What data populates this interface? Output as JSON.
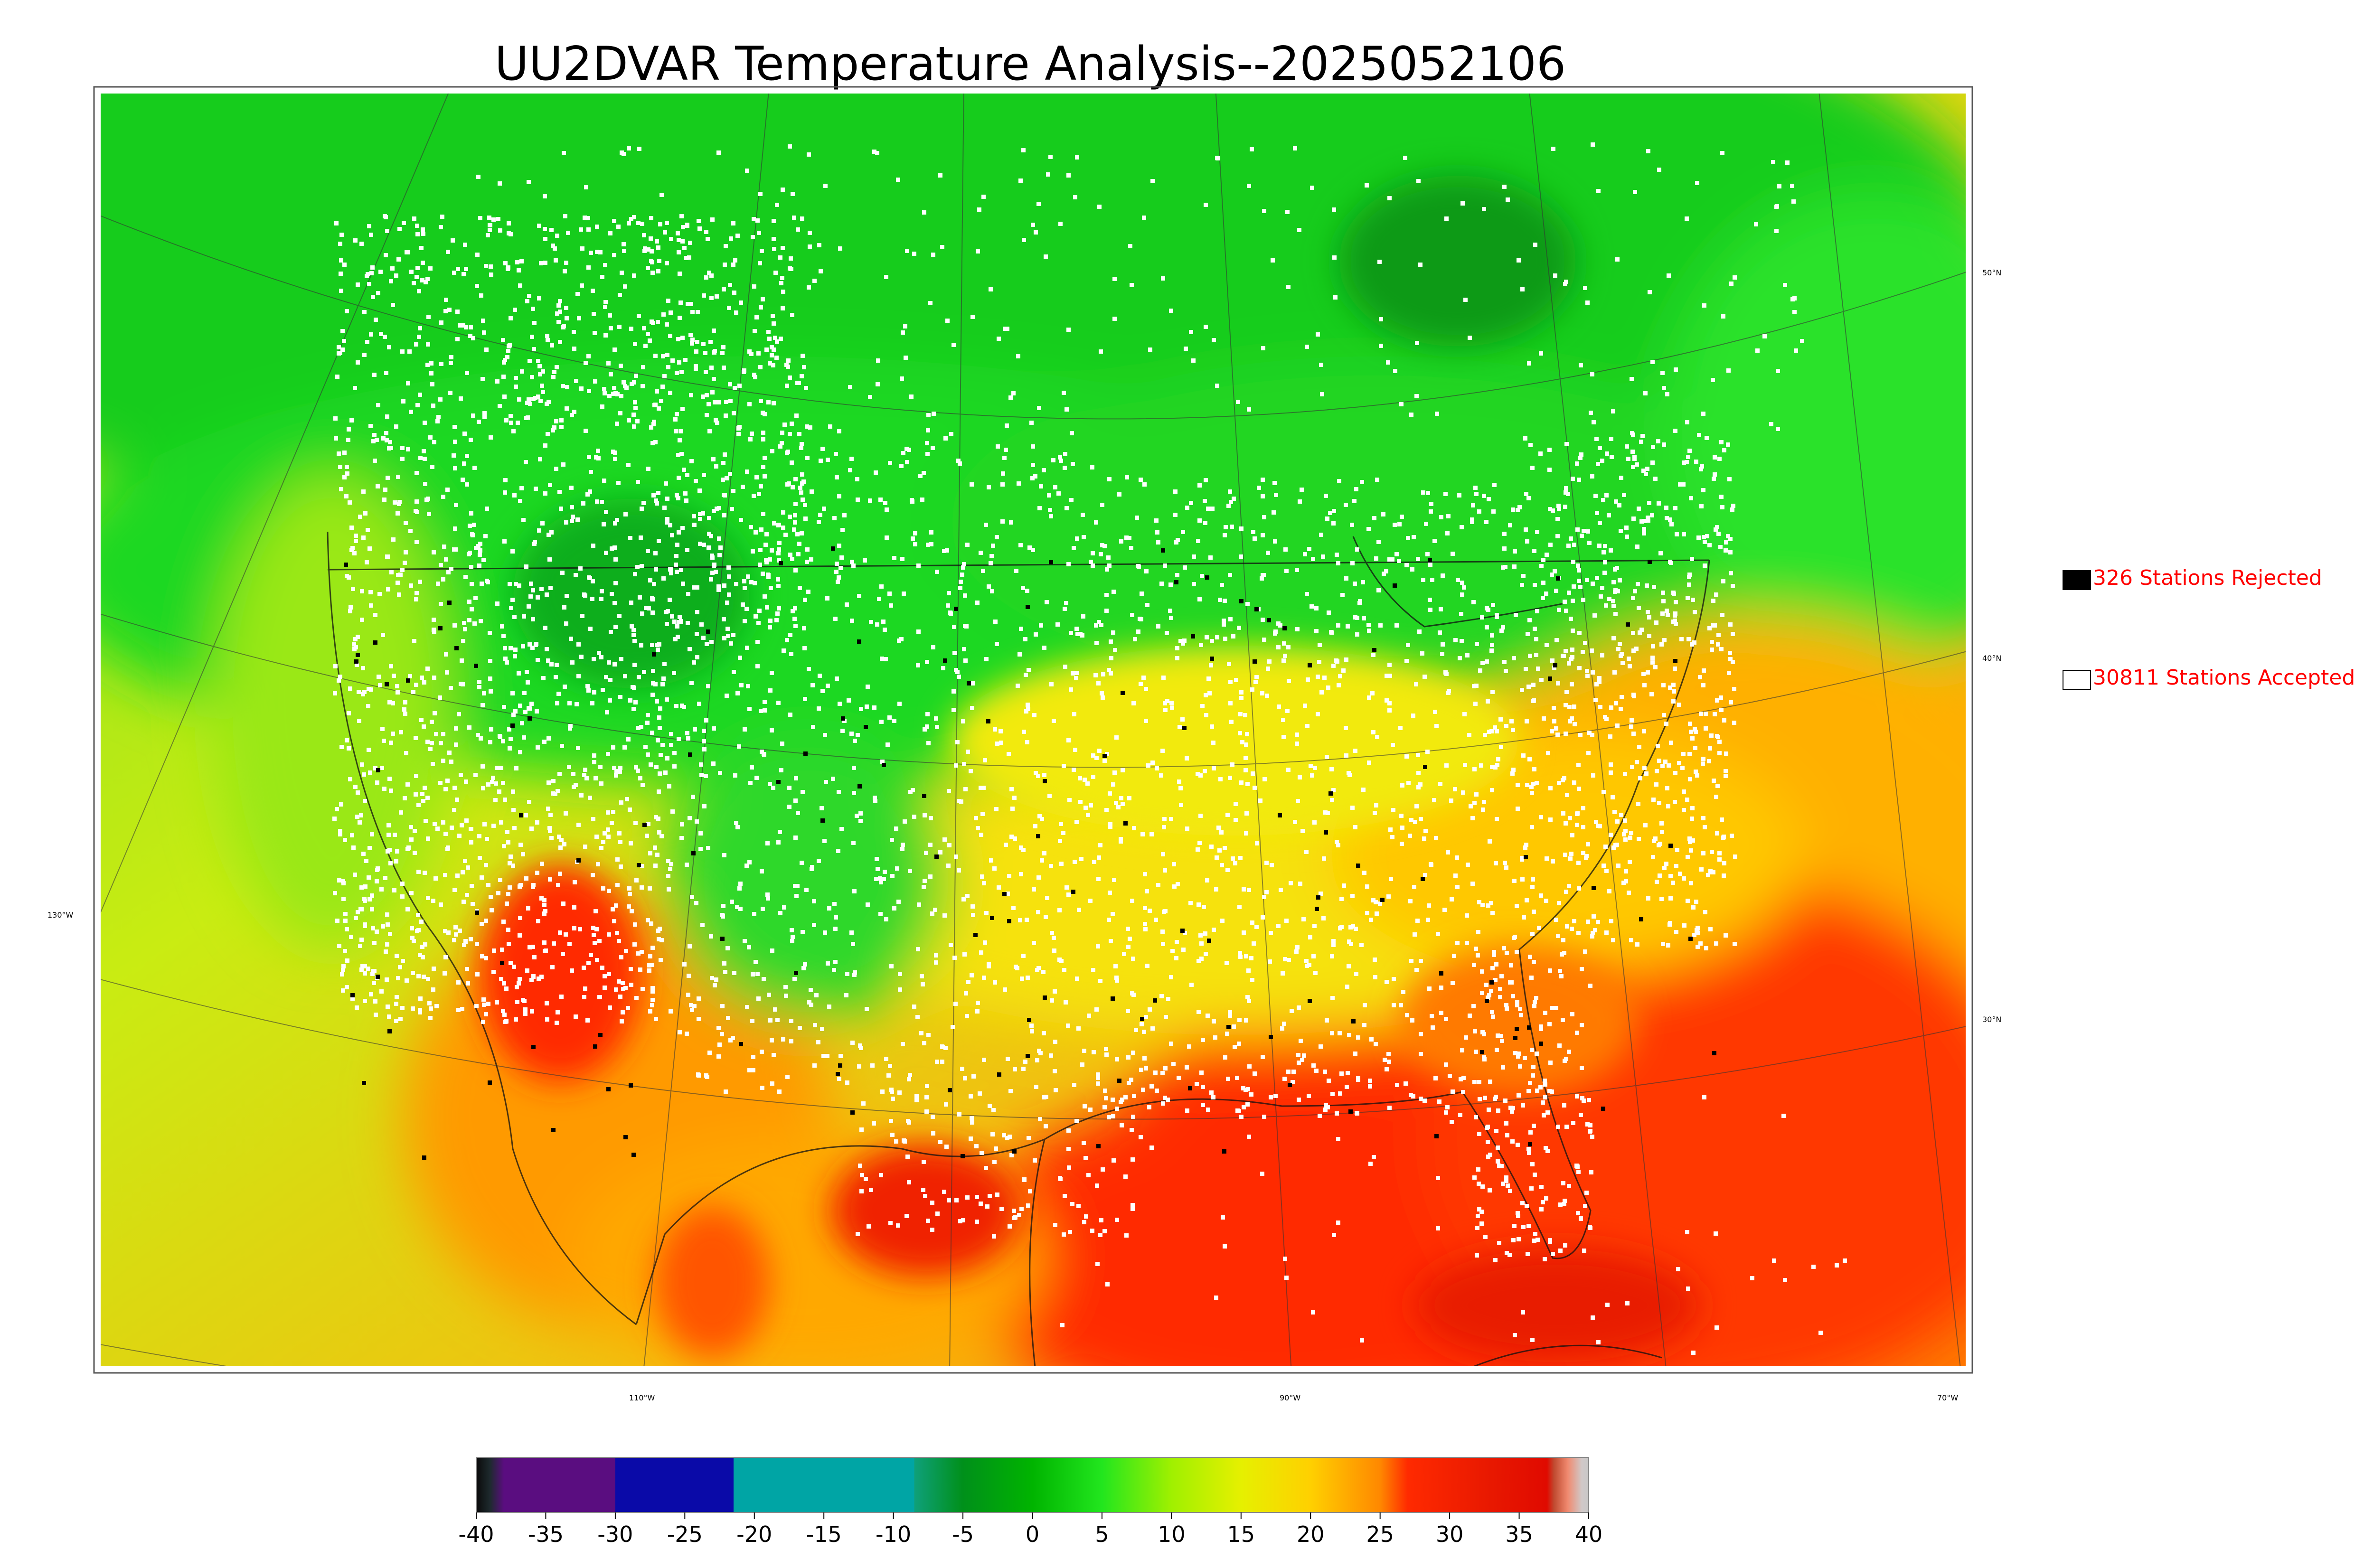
{
  "title": "UU2DVAR Temperature Analysis--2025052106",
  "map": {
    "lat_labels": [
      "50°N",
      "40°N",
      "30°N"
    ],
    "lon_labels": [
      "130°W",
      "110°W",
      "90°W",
      "70°W"
    ]
  },
  "legend": {
    "rejected_label": "326 Stations Rejected",
    "accepted_label": "30811 Stations Accepted",
    "rejected_color": "#000000",
    "accepted_color": "#ffffff",
    "label_color": "#ff0000"
  },
  "colorbar": {
    "ticks": [
      "-40",
      "-35",
      "-30",
      "-25",
      "-20",
      "-15",
      "-10",
      "-5",
      "0",
      "5",
      "10",
      "15",
      "20",
      "25",
      "30",
      "35",
      "40"
    ],
    "min": -40,
    "max": 40,
    "stops": [
      {
        "value": -40,
        "color": "#0a0a0a"
      },
      {
        "value": -39,
        "color": "#1e2a2e"
      },
      {
        "value": -38,
        "color": "#5a0d80"
      },
      {
        "value": -30,
        "color": "#5a0d80"
      },
      {
        "value": -30,
        "color": "#0a0aa8"
      },
      {
        "value": -21.5,
        "color": "#0a0aa8"
      },
      {
        "value": -21.5,
        "color": "#00a5a5"
      },
      {
        "value": -8.5,
        "color": "#00a5a5"
      },
      {
        "value": -8.5,
        "color": "#0fa07a"
      },
      {
        "value": -5,
        "color": "#00901a"
      },
      {
        "value": 0,
        "color": "#00b400"
      },
      {
        "value": 5,
        "color": "#22e61e"
      },
      {
        "value": 10,
        "color": "#a0f000"
      },
      {
        "value": 15,
        "color": "#e6f000"
      },
      {
        "value": 20,
        "color": "#ffd000"
      },
      {
        "value": 25,
        "color": "#ff8800"
      },
      {
        "value": 27,
        "color": "#ff2a00"
      },
      {
        "value": 33,
        "color": "#e81800"
      },
      {
        "value": 37,
        "color": "#e00a00"
      },
      {
        "value": 37.5,
        "color": "#c04a30"
      },
      {
        "value": 38.5,
        "color": "#f08a70"
      },
      {
        "value": 39.5,
        "color": "#d0c8c8"
      },
      {
        "value": 40,
        "color": "#c8c8c8"
      }
    ]
  }
}
